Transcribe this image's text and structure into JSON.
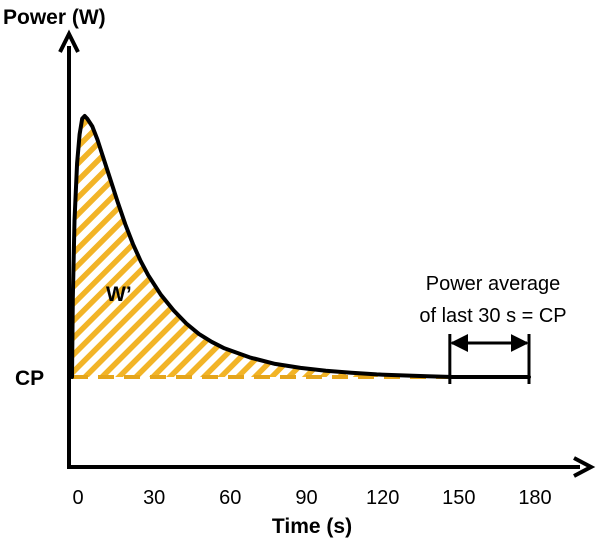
{
  "chart_data": {
    "type": "line",
    "ylabel": "Power (W)",
    "xlabel": "Time (s)",
    "x_ticks": [
      0,
      30,
      60,
      90,
      120,
      150,
      180
    ],
    "xlim": [
      0,
      180
    ],
    "y_reference_label": "CP",
    "area_label": "W’",
    "annotation": {
      "line1": "Power average",
      "line2": "of last 30 s = CP",
      "x_start": 150,
      "x_end": 180
    },
    "curve": {
      "x": [
        0,
        0.3,
        1,
        2,
        3,
        4,
        5,
        6,
        8,
        10,
        12,
        15,
        18,
        21,
        24,
        27,
        30,
        35,
        40,
        45,
        50,
        55,
        60,
        70,
        80,
        90,
        100,
        110,
        120,
        130,
        140,
        150,
        160,
        170,
        180
      ],
      "y_rel": [
        0.0,
        0.3,
        0.6,
        0.82,
        0.93,
        0.99,
        1.0,
        0.99,
        0.96,
        0.91,
        0.85,
        0.76,
        0.67,
        0.585,
        0.51,
        0.445,
        0.39,
        0.315,
        0.255,
        0.205,
        0.165,
        0.135,
        0.11,
        0.075,
        0.05,
        0.035,
        0.024,
        0.016,
        0.01,
        0.006,
        0.003,
        0.0,
        0.0,
        0.0,
        0.0
      ]
    },
    "colors": {
      "curve": "#000000",
      "fill_hatch": "#f2b427",
      "cp_line": "#e5a51b",
      "axes": "#000000"
    },
    "grid": false,
    "legend": "none"
  }
}
